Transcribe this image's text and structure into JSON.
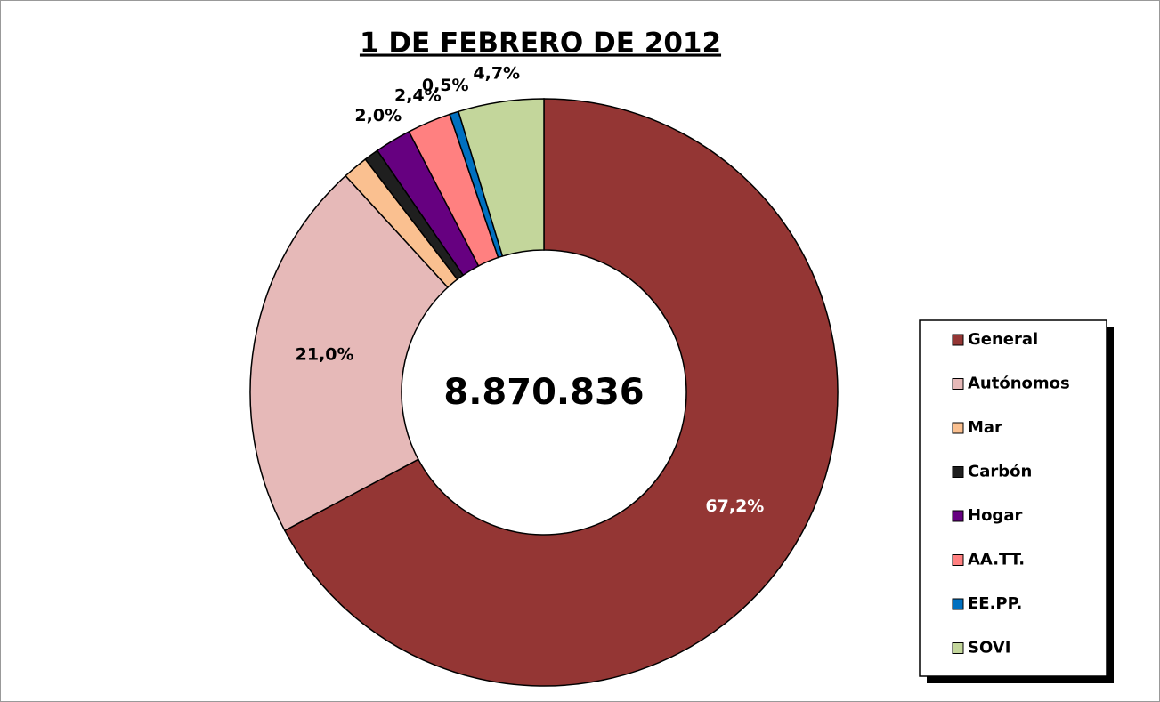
{
  "chart_data": {
    "type": "donut",
    "title": "1 DE FEBRERO DE 2012",
    "center_label": "8.870.836",
    "categories": [
      "General",
      "Autónomos",
      "Mar",
      "Carbón",
      "Hogar",
      "AA.TT.",
      "EE.PP.",
      "SOVI"
    ],
    "values": [
      67.2,
      21.0,
      1.4,
      0.8,
      2.0,
      2.4,
      0.5,
      4.7
    ],
    "value_labels": [
      "67,2%",
      "21,0%",
      null,
      null,
      "2,0%",
      "2,4%",
      "0,5%",
      "4,7%"
    ],
    "colors": [
      "#943634",
      "#e6b9b8",
      "#fac090",
      "#1f1f1f",
      "#660080",
      "#ff8080",
      "#0070c0",
      "#c3d69b"
    ],
    "legend": "right"
  }
}
